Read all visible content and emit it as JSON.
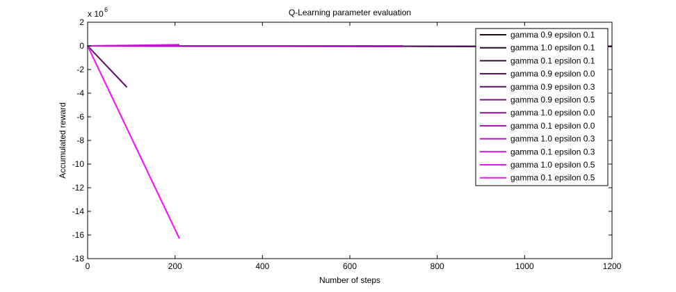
{
  "chart_data": {
    "type": "line",
    "title": "Q-Learning parameter evaluation",
    "xlabel": "Number of steps",
    "ylabel": "Accumulated reward",
    "y_multiplier_label": "x 10",
    "y_multiplier_exponent": "6",
    "xlim": [
      0,
      1200
    ],
    "ylim": [
      -18,
      2
    ],
    "xticks": [
      0,
      200,
      400,
      600,
      800,
      1000,
      1200
    ],
    "yticks": [
      2,
      0,
      -2,
      -4,
      -6,
      -8,
      -10,
      -12,
      -14,
      -16,
      -18
    ],
    "grid": false,
    "legend_position": "top-right",
    "series": [
      {
        "name": "gamma 0.9 epsilon 0.1",
        "color": "#1a0a1a",
        "x": [
          0,
          1200
        ],
        "y": [
          0,
          -0.05
        ]
      },
      {
        "name": "gamma 1.0 epsilon 0.1",
        "color": "#26082b",
        "x": [
          0,
          1200
        ],
        "y": [
          0,
          -0.05
        ]
      },
      {
        "name": "gamma 0.1 epsilon 0.1",
        "color": "#3a0a3c",
        "x": [
          0,
          1200
        ],
        "y": [
          0,
          -0.05
        ]
      },
      {
        "name": "gamma 0.9 epsilon 0.0",
        "color": "#4d0b52",
        "x": [
          0,
          1200
        ],
        "y": [
          0,
          -0.05
        ]
      },
      {
        "name": "gamma 0.9 epsilon 0.3",
        "color": "#620c6a",
        "x": [
          0,
          90
        ],
        "y": [
          0,
          -3.5
        ]
      },
      {
        "name": "gamma 0.9 epsilon 0.5",
        "color": "#760d80",
        "x": [
          0,
          720
        ],
        "y": [
          0,
          -0.05
        ]
      },
      {
        "name": "gamma 1.0 epsilon 0.0",
        "color": "#8a0f96",
        "x": [
          0,
          720
        ],
        "y": [
          0,
          -0.02
        ]
      },
      {
        "name": "gamma 0.1 epsilon 0.0",
        "color": "#a010ad",
        "x": [
          0,
          720
        ],
        "y": [
          0,
          0.0
        ]
      },
      {
        "name": "gamma 1.0 epsilon 0.3",
        "color": "#b512c4",
        "x": [
          0,
          210
        ],
        "y": [
          0,
          0.1
        ]
      },
      {
        "name": "gamma 0.1 epsilon 0.3",
        "color": "#cc14d9",
        "x": [
          0,
          210
        ],
        "y": [
          0,
          0.05
        ]
      },
      {
        "name": "gamma 1.0 epsilon 0.5",
        "color": "#e016ec",
        "x": [
          0,
          210
        ],
        "y": [
          0,
          -16.3
        ]
      },
      {
        "name": "gamma 0.1 epsilon 0.5",
        "color": "#f218fb",
        "x": [
          0,
          210
        ],
        "y": [
          0,
          -16.3
        ]
      }
    ]
  }
}
